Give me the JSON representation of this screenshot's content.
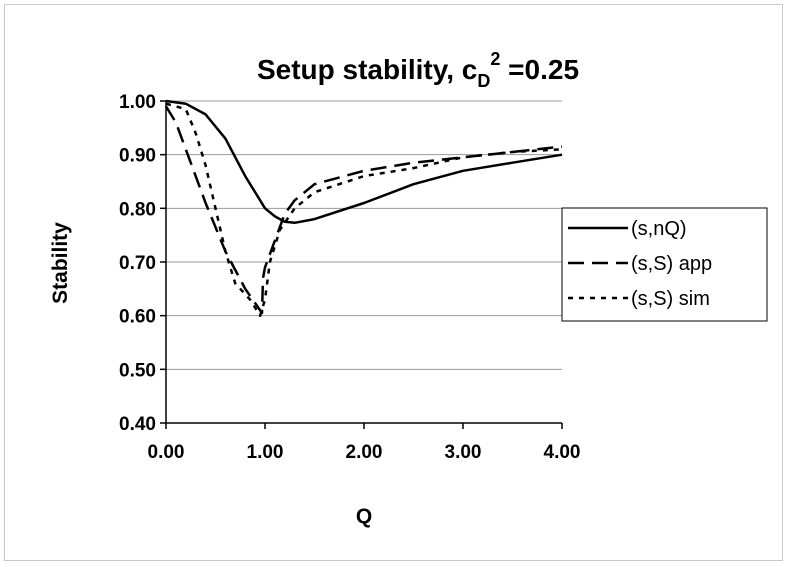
{
  "chart_data": {
    "type": "line",
    "title": {
      "main": "Setup stability, c",
      "subscript": "D",
      "superscript": "2",
      "suffix": " =0.25"
    },
    "xlabel": "Q",
    "ylabel": "Stability",
    "xlim": [
      0,
      4
    ],
    "ylim": [
      0.4,
      1.0
    ],
    "x_ticks": [
      "0.00",
      "1.00",
      "2.00",
      "3.00",
      "4.00"
    ],
    "y_ticks": [
      "0.40",
      "0.50",
      "0.60",
      "0.70",
      "0.80",
      "0.90",
      "1.00"
    ],
    "grid": "horizontal",
    "legend_position": "right",
    "series": [
      {
        "name": "(s,nQ)",
        "style": "solid",
        "points": [
          [
            0.0,
            1.0
          ],
          [
            0.2,
            0.995
          ],
          [
            0.4,
            0.975
          ],
          [
            0.6,
            0.93
          ],
          [
            0.8,
            0.86
          ],
          [
            1.0,
            0.8
          ],
          [
            1.1,
            0.785
          ],
          [
            1.2,
            0.775
          ],
          [
            1.3,
            0.773
          ],
          [
            1.5,
            0.78
          ],
          [
            2.0,
            0.81
          ],
          [
            2.5,
            0.845
          ],
          [
            3.0,
            0.87
          ],
          [
            3.5,
            0.885
          ],
          [
            4.0,
            0.9
          ]
        ]
      },
      {
        "name": "(s,S) app",
        "style": "dashed",
        "points": [
          [
            0.0,
            0.99
          ],
          [
            0.1,
            0.96
          ],
          [
            0.2,
            0.91
          ],
          [
            0.4,
            0.81
          ],
          [
            0.6,
            0.72
          ],
          [
            0.8,
            0.65
          ],
          [
            0.97,
            0.605
          ],
          [
            0.98,
            0.67
          ],
          [
            1.0,
            0.69
          ],
          [
            1.1,
            0.74
          ],
          [
            1.2,
            0.79
          ],
          [
            1.3,
            0.815
          ],
          [
            1.5,
            0.845
          ],
          [
            2.0,
            0.87
          ],
          [
            2.5,
            0.885
          ],
          [
            3.0,
            0.895
          ],
          [
            3.5,
            0.905
          ],
          [
            4.0,
            0.915
          ]
        ]
      },
      {
        "name": "(s,S) sim",
        "style": "dotted",
        "points": [
          [
            0.0,
            0.995
          ],
          [
            0.2,
            0.985
          ],
          [
            0.3,
            0.94
          ],
          [
            0.4,
            0.88
          ],
          [
            0.5,
            0.8
          ],
          [
            0.6,
            0.72
          ],
          [
            0.7,
            0.66
          ],
          [
            0.85,
            0.63
          ],
          [
            0.95,
            0.6
          ],
          [
            1.0,
            0.63
          ],
          [
            1.05,
            0.7
          ],
          [
            1.15,
            0.76
          ],
          [
            1.3,
            0.8
          ],
          [
            1.5,
            0.83
          ],
          [
            2.0,
            0.86
          ],
          [
            2.5,
            0.875
          ],
          [
            3.0,
            0.895
          ],
          [
            3.5,
            0.905
          ],
          [
            4.0,
            0.91
          ]
        ]
      }
    ]
  }
}
